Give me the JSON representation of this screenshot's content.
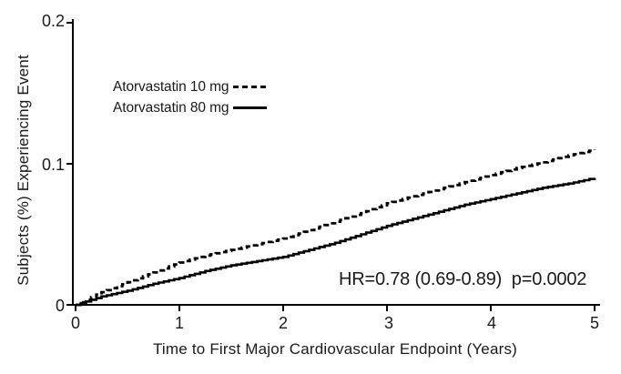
{
  "figure": {
    "y_axis": {
      "label": "Subjects (%) Experiencing Event",
      "tick_labels": [
        "0",
        "0.1",
        "0.2"
      ]
    },
    "x_axis": {
      "label": "Time to First Major Cardiovascular Endpoint (Years)",
      "tick_labels": [
        "0",
        "1",
        "2",
        "3",
        "4",
        "5"
      ]
    },
    "legend": {
      "items": [
        {
          "label": "Atorvastatin 10 mg",
          "line_style": "dashed"
        },
        {
          "label": "Atorvastatin 80 mg",
          "line_style": "solid"
        }
      ]
    },
    "annotation": "HR=0.78 (0.69-0.89)  p=0.0002",
    "colors": {
      "line": "#000000",
      "text": "#1a1a1a",
      "background": "#ffffff"
    }
  },
  "chart_data": {
    "type": "line",
    "title": "",
    "xlabel": "Time to First Major Cardiovascular Endpoint (Years)",
    "ylabel": "Subjects (%) Experiencing Event",
    "xlim": [
      0,
      5
    ],
    "ylim": [
      0,
      0.2
    ],
    "x_ticks": [
      0,
      1,
      2,
      3,
      4,
      5
    ],
    "y_ticks": [
      0,
      0.1,
      0.2
    ],
    "grid": false,
    "legend_position": "upper-left-inside",
    "annotation": "HR=0.78 (0.69-0.89)  p=0.0002",
    "x": [
      0,
      0.25,
      0.5,
      0.75,
      1,
      1.25,
      1.5,
      1.75,
      2,
      2.25,
      2.5,
      2.75,
      3,
      3.25,
      3.5,
      3.75,
      4,
      4.25,
      4.5,
      4.75,
      5
    ],
    "series": [
      {
        "name": "Atorvastatin 10 mg",
        "line_style": "dashed",
        "color": "#000000",
        "values": [
          0,
          0.009,
          0.016,
          0.023,
          0.03,
          0.035,
          0.039,
          0.043,
          0.047,
          0.053,
          0.059,
          0.065,
          0.072,
          0.077,
          0.082,
          0.087,
          0.092,
          0.097,
          0.101,
          0.106,
          0.11
        ]
      },
      {
        "name": "Atorvastatin 80 mg",
        "line_style": "solid",
        "color": "#000000",
        "values": [
          0,
          0.006,
          0.01,
          0.015,
          0.019,
          0.024,
          0.028,
          0.031,
          0.034,
          0.039,
          0.044,
          0.05,
          0.056,
          0.061,
          0.066,
          0.071,
          0.075,
          0.079,
          0.083,
          0.086,
          0.09
        ]
      }
    ]
  }
}
